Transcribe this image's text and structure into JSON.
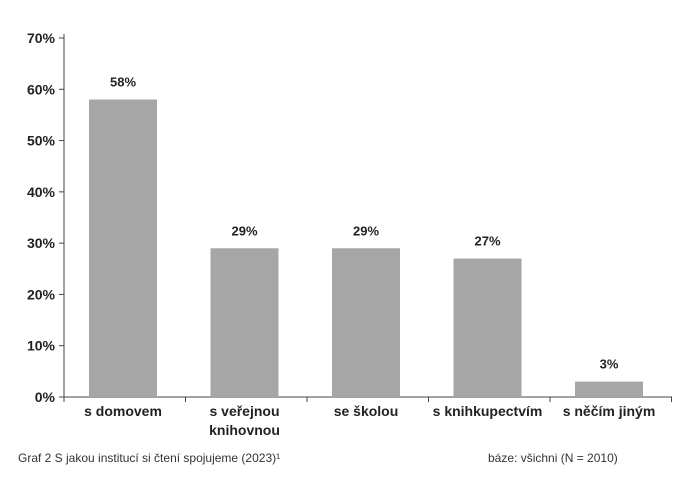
{
  "chart_data": {
    "type": "bar",
    "categories": [
      "s domovem",
      "s veřejnou knihovnou",
      "se školou",
      "s knihkupectvím",
      "s něčím jiným"
    ],
    "category_lines": [
      [
        "s domovem"
      ],
      [
        "s veřejnou",
        "knihovnou"
      ],
      [
        "se školou"
      ],
      [
        "s knihkupectvím"
      ],
      [
        "s něčím jiným"
      ]
    ],
    "values": [
      58,
      29,
      29,
      27,
      3
    ],
    "data_labels": [
      "58%",
      "29%",
      "29%",
      "27%",
      "3%"
    ],
    "ylim": [
      0,
      70
    ],
    "yticks": [
      0,
      10,
      20,
      30,
      40,
      50,
      60,
      70
    ],
    "ytick_labels": [
      "0%",
      "10%",
      "20%",
      "30%",
      "40%",
      "50%",
      "60%",
      "70%"
    ],
    "bar_color": "#a6a6a6",
    "grid": false,
    "legend": "none"
  },
  "caption": {
    "title": "Graf 2 S jakou institucí si čtení spojujeme (2023)¹",
    "base": "báze: všichni (N = 2010)"
  }
}
